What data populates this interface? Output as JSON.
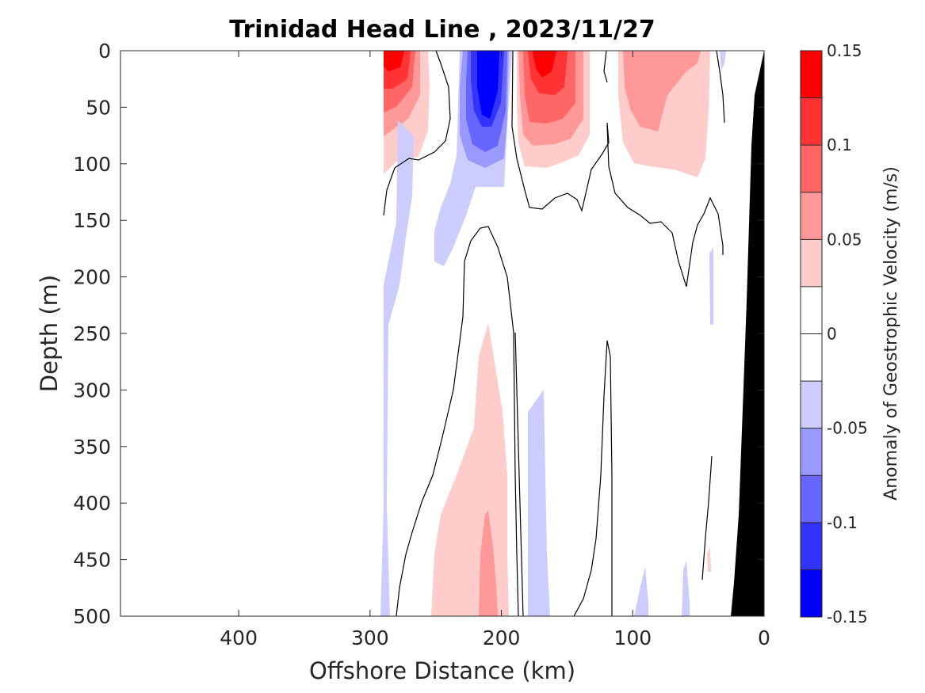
{
  "chart_data": {
    "type": "contour",
    "title": "Trinidad Head Line , 2023/11/27",
    "xlabel": "Offshore Distance (km)",
    "ylabel": "Depth (m)",
    "xlim": [
      490,
      0
    ],
    "ylim": [
      0,
      500
    ],
    "x_direction": "reversed",
    "y_direction": "depth increases downward",
    "x_ticks": [
      400,
      300,
      200,
      100,
      0
    ],
    "y_ticks": [
      0,
      50,
      100,
      150,
      200,
      250,
      300,
      350,
      400,
      450,
      500
    ],
    "colorbar": {
      "label": "Anomaly of Geostrophic Velocity (m/s)",
      "ticks": [
        0.15,
        0.1,
        0.05,
        0,
        -0.05,
        -0.1,
        -0.15
      ],
      "levels": [
        -0.15,
        -0.125,
        -0.1,
        -0.075,
        -0.05,
        -0.025,
        0,
        0.025,
        0.05,
        0.075,
        0.1,
        0.125,
        0.15
      ],
      "colors": [
        "#0000ff",
        "#3333ff",
        "#6666ff",
        "#9999ff",
        "#ccccff",
        "#ffffff",
        "#ffffff",
        "#ffcccc",
        "#ff9999",
        "#ff6666",
        "#ff3333",
        "#ff0000"
      ]
    },
    "features": [
      {
        "kind": "positive",
        "level": 0.125,
        "x": [
          272,
          290
        ],
        "depth": [
          0,
          30
        ]
      },
      {
        "kind": "positive",
        "level": 0.1,
        "x": [
          268,
          290
        ],
        "depth": [
          0,
          50
        ]
      },
      {
        "kind": "positive",
        "level": 0.075,
        "x": [
          265,
          290
        ],
        "depth": [
          0,
          60
        ]
      },
      {
        "kind": "positive",
        "level": 0.05,
        "x": [
          260,
          290
        ],
        "depth": [
          0,
          75
        ]
      },
      {
        "kind": "positive",
        "level": 0.025,
        "x": [
          255,
          290
        ],
        "depth": [
          0,
          110
        ]
      },
      {
        "kind": "negative",
        "level": -0.15,
        "x": [
          205,
          215
        ],
        "depth": [
          20,
          50
        ]
      },
      {
        "kind": "negative",
        "level": -0.125,
        "x": [
          200,
          225
        ],
        "depth": [
          0,
          50
        ]
      },
      {
        "kind": "negative",
        "level": -0.1,
        "x": [
          195,
          230
        ],
        "depth": [
          0,
          70
        ]
      },
      {
        "kind": "negative",
        "level": -0.075,
        "x": [
          190,
          235
        ],
        "depth": [
          0,
          90
        ]
      },
      {
        "kind": "negative",
        "level": -0.05,
        "x": [
          185,
          240
        ],
        "depth": [
          0,
          110
        ]
      },
      {
        "kind": "negative",
        "level": -0.025,
        "x": [
          185,
          255
        ],
        "depth": [
          0,
          195
        ]
      },
      {
        "kind": "positive",
        "level": 0.125,
        "x": [
          165,
          180
        ],
        "depth": [
          0,
          20
        ]
      },
      {
        "kind": "positive",
        "level": 0.1,
        "x": [
          160,
          185
        ],
        "depth": [
          0,
          40
        ]
      },
      {
        "kind": "positive",
        "level": 0.075,
        "x": [
          155,
          190
        ],
        "depth": [
          0,
          65
        ]
      },
      {
        "kind": "positive",
        "level": 0.05,
        "x": [
          145,
          190
        ],
        "depth": [
          0,
          80
        ]
      },
      {
        "kind": "positive",
        "level": 0.025,
        "x": [
          135,
          190
        ],
        "depth": [
          0,
          100
        ]
      },
      {
        "kind": "positive",
        "level": 0.05,
        "x": [
          75,
          105
        ],
        "depth": [
          0,
          65
        ]
      },
      {
        "kind": "positive",
        "level": 0.025,
        "x": [
          45,
          110
        ],
        "depth": [
          0,
          110
        ]
      },
      {
        "kind": "negative",
        "level": -0.025,
        "x": [
          270,
          290
        ],
        "depth": [
          150,
          500
        ]
      },
      {
        "kind": "positive",
        "level": 0.025,
        "x": [
          190,
          255
        ],
        "depth": [
          240,
          500
        ]
      },
      {
        "kind": "positive",
        "level": 0.05,
        "x": [
          200,
          222
        ],
        "depth": [
          410,
          500
        ]
      },
      {
        "kind": "negative",
        "level": -0.025,
        "x": [
          165,
          180
        ],
        "depth": [
          250,
          500
        ]
      },
      {
        "kind": "negative",
        "level": -0.025,
        "x": [
          90,
          100
        ],
        "depth": [
          440,
          500
        ]
      },
      {
        "kind": "negative",
        "level": -0.025,
        "x": [
          57,
          63
        ],
        "depth": [
          470,
          500
        ]
      },
      {
        "kind": "bathymetry",
        "x": [
          0,
          25
        ],
        "depth": [
          0,
          500
        ]
      }
    ]
  }
}
